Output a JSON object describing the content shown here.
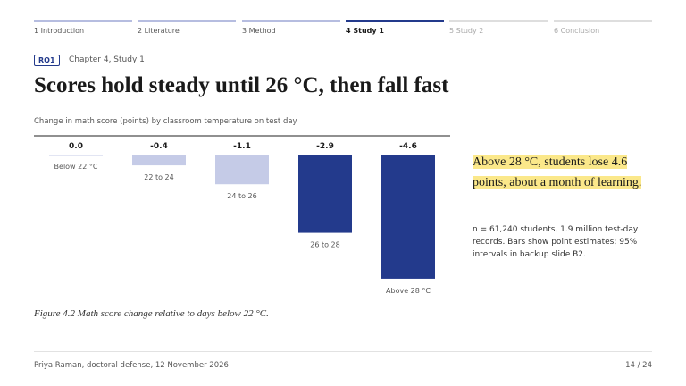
{
  "nav": {
    "steps": [
      "1 Introduction",
      "2 Literature",
      "3 Method",
      "4 Study 1",
      "5 Study 2",
      "6 Conclusion"
    ],
    "active": 3
  },
  "header": {
    "tag": "RQ1",
    "kicker": "Chapter 4, Study 1",
    "title": "Scores hold steady until 26 °C, then fall fast"
  },
  "chart_data": {
    "type": "bar",
    "subtitle": "Change in math score (points) by classroom temperature on test day",
    "categories": [
      "Below 22 °C",
      "22 to 24",
      "24 to 26",
      "26 to 28",
      "Above 28 °C"
    ],
    "values": [
      0.0,
      -0.4,
      -1.1,
      -2.9,
      -4.6
    ],
    "value_labels": [
      "0.0",
      "-0.4",
      "-1.1",
      "-2.9",
      "-4.6"
    ],
    "colors": [
      "#c5cbe7",
      "#c5cbe7",
      "#c5cbe7",
      "#233a8c",
      "#233a8c"
    ],
    "caption": "Figure 4.2 Math score change relative to days below 22 °C."
  },
  "annotation": {
    "headline": "Above 28 °C, students lose 4.6 points, about a month of learning.",
    "note": "n = 61,240 students, 1.9 million test-day records. Bars show point estimates; 95% intervals in backup slide B2."
  },
  "footer": {
    "left": "Priya Raman, doctoral defense, 12 November 2026",
    "right": "14 / 24"
  }
}
